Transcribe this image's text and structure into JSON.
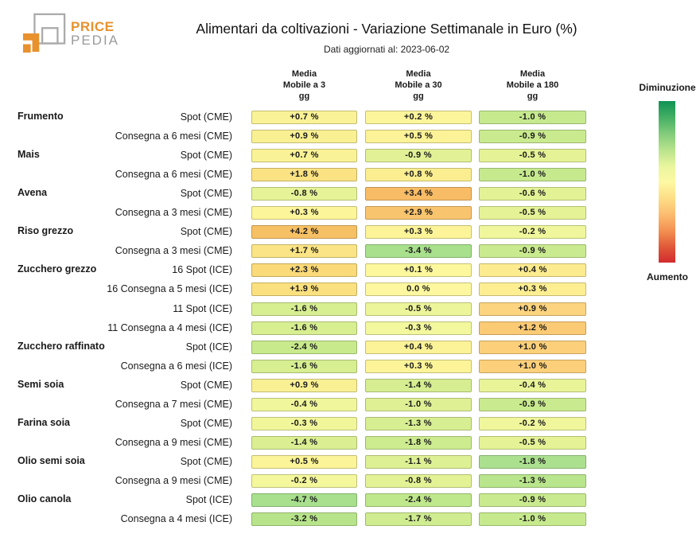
{
  "logo": {
    "line1": "PRICE",
    "line2": "PEDIA",
    "orange": "#E8912D",
    "gray": "#A8A8A8"
  },
  "header": {
    "title": "Alimentari da coltivazioni - Variazione Settimanale in Euro (%)",
    "subtitle": "Dati aggiornati al: 2023-06-02"
  },
  "chart_data": {
    "type": "heatmap",
    "title": "Alimentari da coltivazioni - Variazione Settimanale in Euro (%)",
    "updated": "2023-06-02",
    "unit": "%",
    "columns": [
      "Media\nMobile a 3\ngg",
      "Media\nMobile a 30\ngg",
      "Media\nMobile a 180\ngg"
    ],
    "rows": [
      {
        "category": "Frumento",
        "label": "Spot (CME)",
        "values": [
          0.7,
          0.2,
          -1.0
        ],
        "colors": [
          "#faf296",
          "#fcf59b",
          "#c6e98e"
        ]
      },
      {
        "category": "",
        "label": "Consegna a 6 mesi (CME)",
        "values": [
          0.9,
          0.5,
          -0.9
        ],
        "colors": [
          "#f9f094",
          "#fcf297",
          "#c9ea8e"
        ]
      },
      {
        "category": "Mais",
        "label": "Spot (CME)",
        "values": [
          0.7,
          -0.9,
          -0.5
        ],
        "colors": [
          "#faf296",
          "#e2f195",
          "#e5f396"
        ]
      },
      {
        "category": "",
        "label": "Consegna a 6 mesi (CME)",
        "values": [
          1.8,
          0.8,
          -1.0
        ],
        "colors": [
          "#fbe282",
          "#fbee90",
          "#c6e98e"
        ]
      },
      {
        "category": "Avena",
        "label": "Spot (CME)",
        "values": [
          -0.8,
          3.4,
          -0.6
        ],
        "colors": [
          "#e6f397",
          "#f8bc66",
          "#e2f295"
        ]
      },
      {
        "category": "",
        "label": "Consegna a 3 mesi (CME)",
        "values": [
          0.3,
          2.9,
          -0.5
        ],
        "colors": [
          "#fcf59a",
          "#f9c46e",
          "#e5f396"
        ]
      },
      {
        "category": "Riso grezzo",
        "label": "Spot (CME)",
        "values": [
          4.2,
          0.3,
          -0.2
        ],
        "colors": [
          "#f6c065",
          "#fdf499",
          "#f0f69b"
        ]
      },
      {
        "category": "",
        "label": "Consegna a 3 mesi (CME)",
        "values": [
          1.7,
          -3.4,
          -0.9
        ],
        "colors": [
          "#fbe485",
          "#a8e08c",
          "#c9ea8e"
        ]
      },
      {
        "category": "Zucchero grezzo",
        "label": "16 Spot (ICE)",
        "values": [
          2.3,
          0.1,
          0.4
        ],
        "colors": [
          "#fada79",
          "#fdf79d",
          "#fdeb8f"
        ]
      },
      {
        "category": "",
        "label": "16 Consegna a 5 mesi (ICE)",
        "values": [
          1.9,
          0.0,
          0.3
        ],
        "colors": [
          "#fbe07f",
          "#fdf89f",
          "#fdee92"
        ]
      },
      {
        "category": "",
        "label": "11 Spot (ICE)",
        "values": [
          -1.6,
          -0.5,
          0.9
        ],
        "colors": [
          "#d7ee91",
          "#edf59a",
          "#fcd37e"
        ]
      },
      {
        "category": "",
        "label": "11 Consegna a 4 mesi (ICE)",
        "values": [
          -1.6,
          -0.3,
          1.2
        ],
        "colors": [
          "#d7ee91",
          "#f3f79d",
          "#fbca74"
        ]
      },
      {
        "category": "Zucchero raffinato",
        "label": "Spot (ICE)",
        "values": [
          -2.4,
          0.4,
          1.0
        ],
        "colors": [
          "#c8ea8c",
          "#fcf298",
          "#fcd07a"
        ]
      },
      {
        "category": "",
        "label": "Consegna a 6 mesi (ICE)",
        "values": [
          -1.6,
          0.3,
          1.0
        ],
        "colors": [
          "#d7ee91",
          "#fdf499",
          "#fcd07a"
        ]
      },
      {
        "category": "Semi soia",
        "label": "Spot (CME)",
        "values": [
          0.9,
          -1.4,
          -0.4
        ],
        "colors": [
          "#f9f094",
          "#d6ed91",
          "#e9f498"
        ]
      },
      {
        "category": "",
        "label": "Consegna a 7 mesi (CME)",
        "values": [
          -0.4,
          -1.0,
          -0.9
        ],
        "colors": [
          "#f0f69b",
          "#dff094",
          "#c9ea8e"
        ]
      },
      {
        "category": "Farina soia",
        "label": "Spot (CME)",
        "values": [
          -0.3,
          -1.3,
          -0.2
        ],
        "colors": [
          "#f2f69b",
          "#d8ee92",
          "#f0f69b"
        ]
      },
      {
        "category": "",
        "label": "Consegna a 9 mesi (CME)",
        "values": [
          -1.4,
          -1.8,
          -0.5
        ],
        "colors": [
          "#dbef92",
          "#cdeb8f",
          "#e5f396"
        ]
      },
      {
        "category": "Olio semi soia",
        "label": "Spot (CME)",
        "values": [
          0.5,
          -1.1,
          -1.8
        ],
        "colors": [
          "#fbf498",
          "#ddf094",
          "#abe08f"
        ]
      },
      {
        "category": "",
        "label": "Consegna a 9 mesi (CME)",
        "values": [
          -0.2,
          -0.8,
          -1.3
        ],
        "colors": [
          "#f4f79c",
          "#e4f296",
          "#b9e58c"
        ]
      },
      {
        "category": "Olio canola",
        "label": "Spot (ICE)",
        "values": [
          -4.7,
          -2.4,
          -0.9
        ],
        "colors": [
          "#a8e08d",
          "#bfe78b",
          "#c9ea8e"
        ]
      },
      {
        "category": "",
        "label": "Consegna a 4 mesi (ICE)",
        "values": [
          -3.2,
          -1.7,
          -1.0
        ],
        "colors": [
          "#b7e48a",
          "#cfec90",
          "#c6e98e"
        ]
      }
    ],
    "legend": {
      "top_label": "Diminuzione",
      "bottom_label": "Aumento",
      "gradient_top_to_bottom": [
        "#0f9254",
        "#44af64",
        "#81cb7a",
        "#b7e28c",
        "#e8f59d",
        "#fdf9a3",
        "#fdde87",
        "#fcbd71",
        "#f49252",
        "#e15a39",
        "#d22b2e"
      ]
    }
  }
}
